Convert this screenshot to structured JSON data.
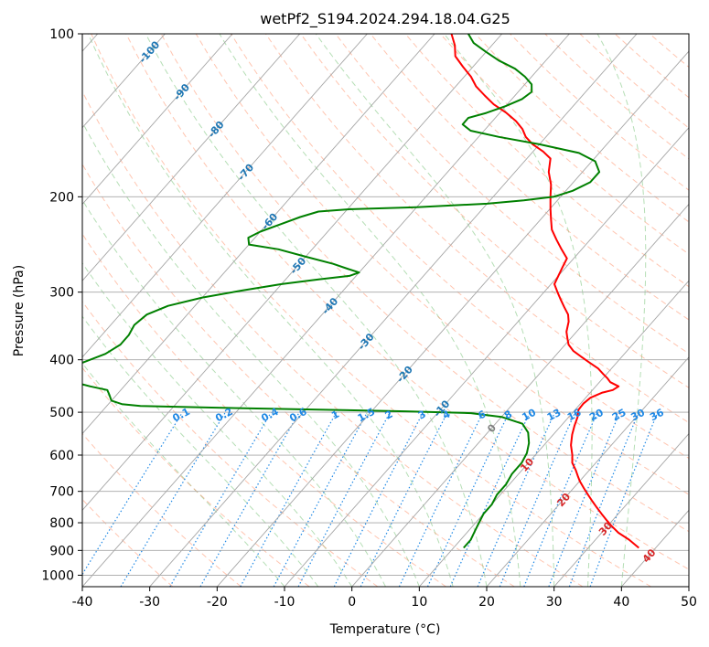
{
  "chart_data": {
    "type": "line",
    "title": "wetPf2_S194.2024.294.18.04.G25",
    "xlabel": "Temperature (°C)",
    "ylabel": "Pressure (hPa)",
    "xlim": [
      -40,
      50
    ],
    "ylim": [
      1050,
      100
    ],
    "y_scale": "log",
    "grid": true,
    "x_ticks": [
      -40,
      -30,
      -20,
      -10,
      0,
      10,
      20,
      30,
      40,
      50
    ],
    "y_ticks": [
      100,
      200,
      300,
      400,
      500,
      600,
      700,
      800,
      900,
      1000
    ],
    "series": [
      {
        "role": "temperature",
        "color": "#ff0000",
        "points": [
          [
            37.5,
            890
          ],
          [
            35.0,
            860
          ],
          [
            32.5,
            835
          ],
          [
            30.5,
            810
          ],
          [
            29.0,
            790
          ],
          [
            27.5,
            770
          ],
          [
            26.0,
            750
          ],
          [
            24.5,
            730
          ],
          [
            23.0,
            710
          ],
          [
            21.5,
            690
          ],
          [
            20.0,
            670
          ],
          [
            19.0,
            655
          ],
          [
            18.0,
            640
          ],
          [
            16.5,
            620
          ],
          [
            15.5,
            600
          ],
          [
            14.0,
            575
          ],
          [
            12.8,
            550
          ],
          [
            12.0,
            530
          ],
          [
            11.3,
            510
          ],
          [
            10.5,
            495
          ],
          [
            10.4,
            482
          ],
          [
            10.7,
            470
          ],
          [
            11.8,
            460
          ],
          [
            13.0,
            455
          ],
          [
            13.4,
            448
          ],
          [
            11.6,
            440
          ],
          [
            10.7,
            433
          ],
          [
            9.5,
            425
          ],
          [
            8.0,
            415
          ],
          [
            6.0,
            405
          ],
          [
            4.0,
            395
          ],
          [
            2.0,
            385
          ],
          [
            0.5,
            375
          ],
          [
            -0.5,
            365
          ],
          [
            -1.5,
            355
          ],
          [
            -2.5,
            340
          ],
          [
            -3.5,
            330
          ],
          [
            -5.0,
            320
          ],
          [
            -6.5,
            310
          ],
          [
            -8.0,
            300
          ],
          [
            -9.5,
            290
          ],
          [
            -10.0,
            280
          ],
          [
            -10.5,
            270
          ],
          [
            -11.0,
            260
          ],
          [
            -13.0,
            250
          ],
          [
            -15.0,
            240
          ],
          [
            -17.0,
            230
          ],
          [
            -18.5,
            220
          ],
          [
            -20.0,
            210
          ],
          [
            -21.5,
            200
          ],
          [
            -23.0,
            190
          ],
          [
            -25.0,
            180
          ],
          [
            -26.5,
            170
          ],
          [
            -28.5,
            165
          ],
          [
            -31.0,
            160
          ],
          [
            -33.0,
            155
          ],
          [
            -34.5,
            150
          ],
          [
            -36.5,
            145
          ],
          [
            -39.0,
            140
          ],
          [
            -42.0,
            135
          ],
          [
            -44.5,
            130
          ],
          [
            -47.0,
            125
          ],
          [
            -49.0,
            120
          ],
          [
            -51.5,
            115
          ],
          [
            -54.0,
            110
          ],
          [
            -55.5,
            105
          ],
          [
            -57.5,
            100
          ]
        ]
      },
      {
        "role": "dewpoint",
        "color": "#008000",
        "points": [
          [
            11.5,
            890
          ],
          [
            11.5,
            860
          ],
          [
            11.0,
            830
          ],
          [
            10.5,
            800
          ],
          [
            10.0,
            770
          ],
          [
            10.0,
            740
          ],
          [
            9.5,
            710
          ],
          [
            9.5,
            680
          ],
          [
            9.0,
            650
          ],
          [
            9.0,
            620
          ],
          [
            8.5,
            595
          ],
          [
            7.5,
            570
          ],
          [
            6.0,
            545
          ],
          [
            4.0,
            525
          ],
          [
            0.0,
            510
          ],
          [
            -5.0,
            502
          ],
          [
            -15.0,
            498
          ],
          [
            -30.0,
            494
          ],
          [
            -45.0,
            490
          ],
          [
            -55.0,
            487
          ],
          [
            -58.0,
            483
          ],
          [
            -60.0,
            476
          ],
          [
            -61.0,
            465
          ],
          [
            -62.0,
            455
          ],
          [
            -65.0,
            448
          ],
          [
            -68.0,
            440
          ],
          [
            -70.0,
            425
          ],
          [
            -70.0,
            410
          ],
          [
            -67.0,
            390
          ],
          [
            -66.0,
            375
          ],
          [
            -66.0,
            360
          ],
          [
            -66.5,
            345
          ],
          [
            -66.0,
            330
          ],
          [
            -64.0,
            318
          ],
          [
            -60.0,
            307
          ],
          [
            -55.0,
            298
          ],
          [
            -50.0,
            290
          ],
          [
            -45.0,
            284
          ],
          [
            -41.0,
            280
          ],
          [
            -40.0,
            276
          ],
          [
            -42.0,
            272
          ],
          [
            -45.0,
            266
          ],
          [
            -50.0,
            258
          ],
          [
            -55.0,
            250
          ],
          [
            -60.0,
            245
          ],
          [
            -61.0,
            238
          ],
          [
            -60.0,
            232
          ],
          [
            -58.0,
            225
          ],
          [
            -56.0,
            218
          ],
          [
            -54.0,
            213
          ],
          [
            -50.0,
            211
          ],
          [
            -40.0,
            209
          ],
          [
            -30.0,
            206
          ],
          [
            -25.0,
            203
          ],
          [
            -21.0,
            200
          ],
          [
            -19.0,
            195
          ],
          [
            -17.5,
            188
          ],
          [
            -17.5,
            180
          ],
          [
            -19.5,
            172
          ],
          [
            -23.0,
            166
          ],
          [
            -30.0,
            160
          ],
          [
            -37.0,
            155
          ],
          [
            -42.0,
            151
          ],
          [
            -44.0,
            147
          ],
          [
            -44.0,
            143
          ],
          [
            -42.0,
            140
          ],
          [
            -40.0,
            136
          ],
          [
            -38.5,
            132
          ],
          [
            -38.0,
            128
          ],
          [
            -39.0,
            124
          ],
          [
            -41.0,
            120
          ],
          [
            -43.5,
            116
          ],
          [
            -47.0,
            112
          ],
          [
            -50.0,
            108
          ],
          [
            -53.0,
            104
          ],
          [
            -55.0,
            100
          ]
        ]
      }
    ],
    "dry_adiabats": [
      -30,
      -20,
      -10,
      0,
      10,
      20,
      30,
      40,
      50,
      60,
      70,
      80,
      90,
      100,
      110,
      120,
      130,
      140,
      150,
      160,
      170,
      180,
      190,
      200
    ],
    "moist_adiabats": [
      -10,
      -5,
      0,
      5,
      10,
      15,
      20,
      25,
      30,
      35,
      40
    ],
    "isotherm_labels": [
      {
        "t": "-100",
        "p": 108
      },
      {
        "t": "-90",
        "p": 128
      },
      {
        "t": "-80",
        "p": 150
      },
      {
        "t": "-70",
        "p": 180
      },
      {
        "t": "-60",
        "p": 222
      },
      {
        "t": "-50",
        "p": 268
      },
      {
        "t": "-40",
        "p": 318
      },
      {
        "t": "-30",
        "p": 370
      },
      {
        "t": "-20",
        "p": 425
      },
      {
        "t": "-10",
        "p": 492
      },
      {
        "t": "0",
        "p": 535
      },
      {
        "t": "10",
        "p": 625
      },
      {
        "t": "20",
        "p": 725
      },
      {
        "t": "30",
        "p": 820
      },
      {
        "t": "40",
        "p": 920
      }
    ],
    "mixing_ratio_labels": [
      "0.1",
      "0.2",
      "0.4",
      "0.6",
      "1",
      "1.5",
      "2",
      "3",
      "4",
      "6",
      "8",
      "10",
      "13",
      "16",
      "20",
      "25",
      "30",
      "36"
    ],
    "mixing_ratio_label_p": 505,
    "colors": {
      "temperature": "#ff0000",
      "dewpoint": "#008000",
      "isotherm_grid": "#a6a6a6",
      "isobar_grid": "#a6a6a6",
      "dry_adiabat": "#ff7f50",
      "moist_adiabat": "#2ca02c",
      "mixing_ratio": "#1e88e5",
      "label_cold": "#1f77b4",
      "label_zero": "#808080",
      "label_warm": "#d62728"
    }
  }
}
